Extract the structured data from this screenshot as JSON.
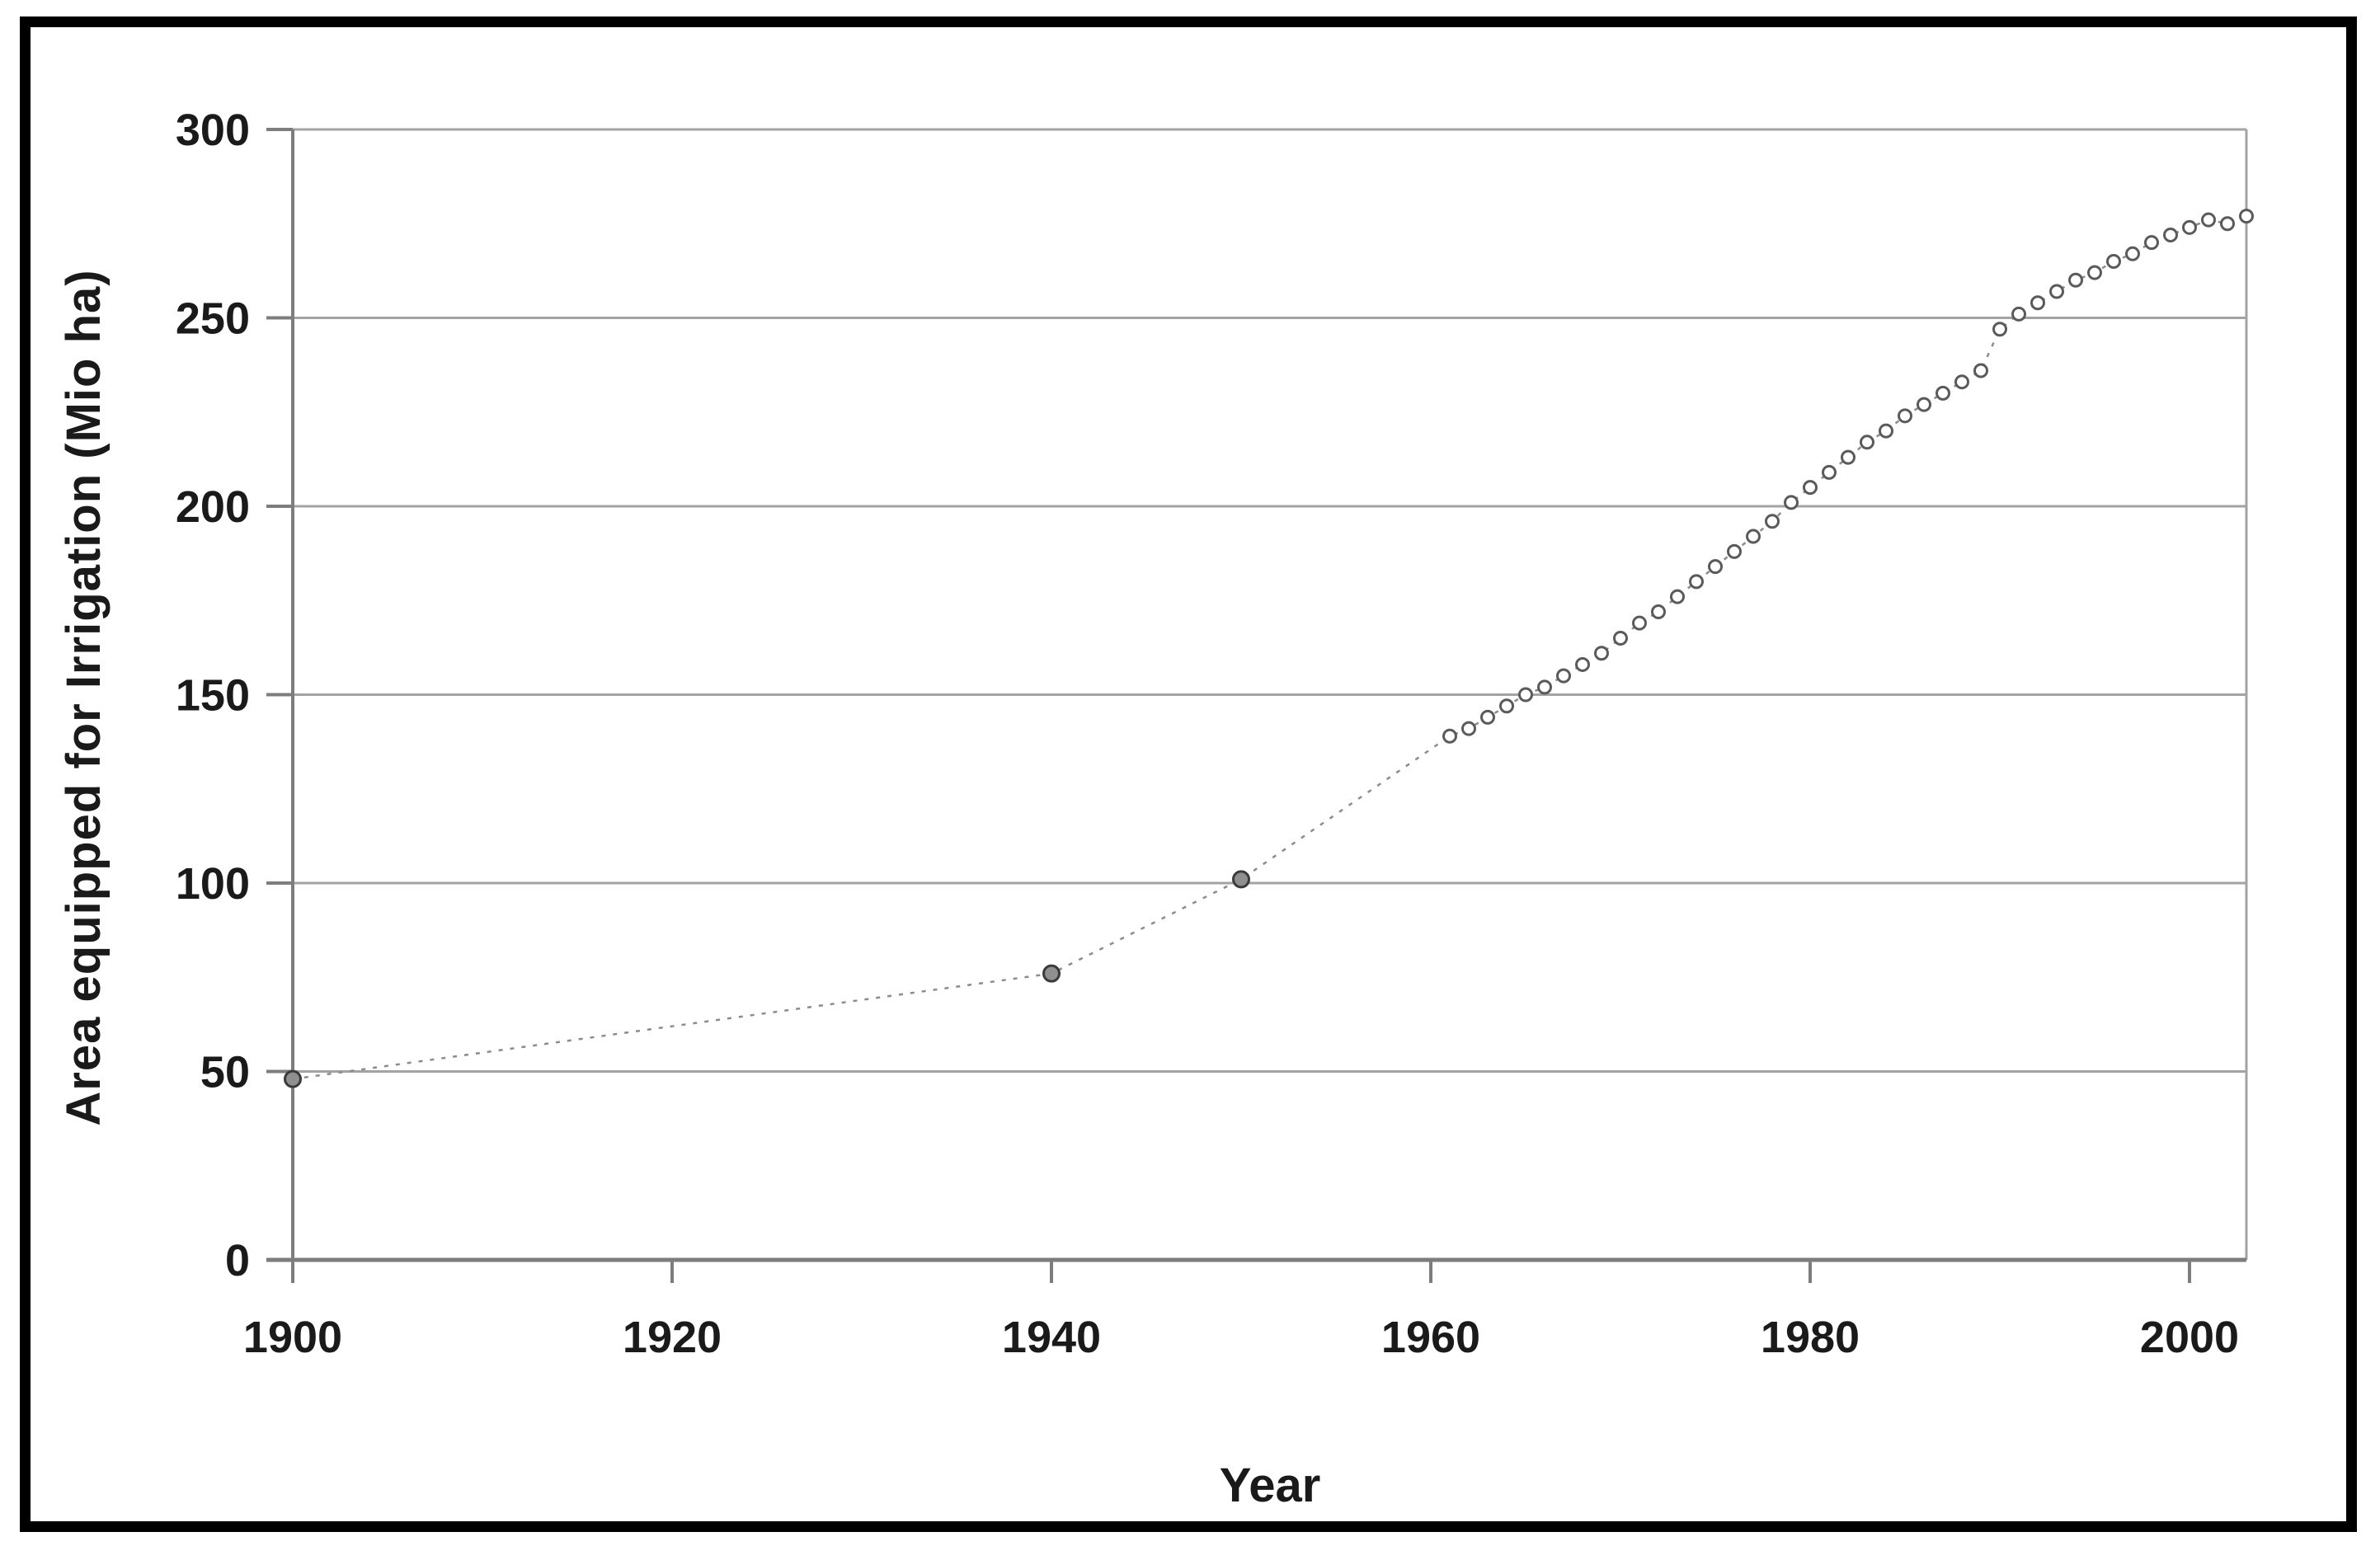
{
  "chart_data": {
    "type": "scatter",
    "title": "",
    "xlabel": "Year",
    "ylabel": "Area equipped for Irrigation (Mio ha)",
    "x_ticks": [
      1900,
      1920,
      1940,
      1960,
      1980,
      2000
    ],
    "y_ticks": [
      0,
      50,
      100,
      150,
      200,
      250,
      300
    ],
    "xlim": [
      1900,
      2003
    ],
    "ylim": [
      0,
      300
    ],
    "grid": "horizontal",
    "legend": "none",
    "marker_style": "small open circles connected by fine dotted line",
    "emphasized_marker_years": [
      1900,
      1940,
      1950
    ],
    "series": [
      {
        "name": "Area equipped for irrigation",
        "points": [
          [
            1900,
            48
          ],
          [
            1940,
            76
          ],
          [
            1950,
            101
          ],
          [
            1961,
            139
          ],
          [
            1962,
            141
          ],
          [
            1963,
            144
          ],
          [
            1964,
            147
          ],
          [
            1965,
            150
          ],
          [
            1966,
            152
          ],
          [
            1967,
            155
          ],
          [
            1968,
            158
          ],
          [
            1969,
            161
          ],
          [
            1970,
            165
          ],
          [
            1971,
            169
          ],
          [
            1972,
            172
          ],
          [
            1973,
            176
          ],
          [
            1974,
            180
          ],
          [
            1975,
            184
          ],
          [
            1976,
            188
          ],
          [
            1977,
            192
          ],
          [
            1978,
            196
          ],
          [
            1979,
            201
          ],
          [
            1980,
            205
          ],
          [
            1981,
            209
          ],
          [
            1982,
            213
          ],
          [
            1983,
            217
          ],
          [
            1984,
            220
          ],
          [
            1985,
            224
          ],
          [
            1986,
            227
          ],
          [
            1987,
            230
          ],
          [
            1988,
            233
          ],
          [
            1989,
            236
          ],
          [
            1990,
            247
          ],
          [
            1991,
            251
          ],
          [
            1992,
            254
          ],
          [
            1993,
            257
          ],
          [
            1994,
            260
          ],
          [
            1995,
            262
          ],
          [
            1996,
            265
          ],
          [
            1997,
            267
          ],
          [
            1998,
            270
          ],
          [
            1999,
            272
          ],
          [
            2000,
            274
          ],
          [
            2001,
            276
          ],
          [
            2002,
            275
          ],
          [
            2003,
            277
          ]
        ]
      }
    ],
    "colors": {
      "frame": "#000000",
      "axis": "#7d7d7d",
      "grid": "#a3a3a3",
      "line": "#8c8c8c",
      "marker_stroke": "#5a5a5a",
      "marker_fill": "#ffffff",
      "emphasized_marker_stroke": "#3a3a3a",
      "emphasized_marker_fill": "#8f8f8f",
      "text": "#1a1a1a"
    }
  }
}
